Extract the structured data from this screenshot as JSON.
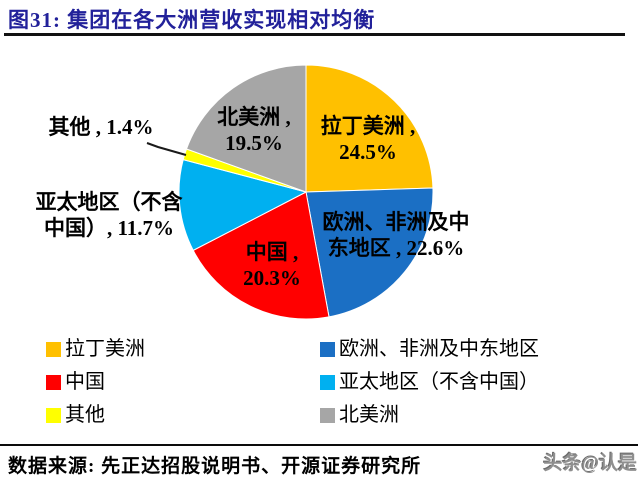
{
  "header": {
    "title": "图31:  集团在各大洲营收实现相对均衡"
  },
  "chart_data": {
    "type": "pie",
    "title": "集团在各大洲营收实现相对均衡",
    "categories": [
      "拉丁美洲",
      "欧洲、非洲及中东地区",
      "中国",
      "亚太地区（不含中国）",
      "其他",
      "北美洲"
    ],
    "values": [
      24.5,
      22.6,
      20.3,
      11.7,
      1.4,
      19.5
    ],
    "unit": "%",
    "colors": [
      "#FFC000",
      "#1B6FC4",
      "#FF0000",
      "#00B0F0",
      "#FFFF00",
      "#A6A6A6"
    ],
    "keys": [
      "latin-america",
      "europe-africa-middle-east",
      "china",
      "asia-pacific-ex-china",
      "other",
      "north-america"
    ],
    "start_angle_deg": 0,
    "direction": "clockwise",
    "legend_position": "bottom",
    "point_labels": {
      "latin": {
        "line1": "拉丁美洲 ,",
        "line2": "24.5%"
      },
      "europe": {
        "line1": "欧洲、非洲及中",
        "line2": "东地区 , 22.6%"
      },
      "china": {
        "line1": "中国 ,",
        "line2": "20.3%"
      },
      "apac": {
        "line1": "亚太地区（不含",
        "line2": "中国）, 11.7%"
      },
      "other": {
        "text": "其他 , 1.4%"
      },
      "north_america": {
        "line1": "北美洲 ,",
        "line2": "19.5%"
      }
    }
  },
  "legend": {
    "items": [
      {
        "label": "拉丁美洲",
        "color": "#FFC000"
      },
      {
        "label": "中国",
        "color": "#FF0000"
      },
      {
        "label": "其他",
        "color": "#FFFF00"
      },
      {
        "label": "欧洲、非洲及中东地区",
        "color": "#1B6FC4"
      },
      {
        "label": "亚太地区（不含中国）",
        "color": "#00B0F0"
      },
      {
        "label": "北美洲",
        "color": "#A6A6A6"
      }
    ]
  },
  "footer": {
    "source": "数据来源: 先正达招股说明书、开源证券研究所",
    "watermark": "头条@认是"
  }
}
